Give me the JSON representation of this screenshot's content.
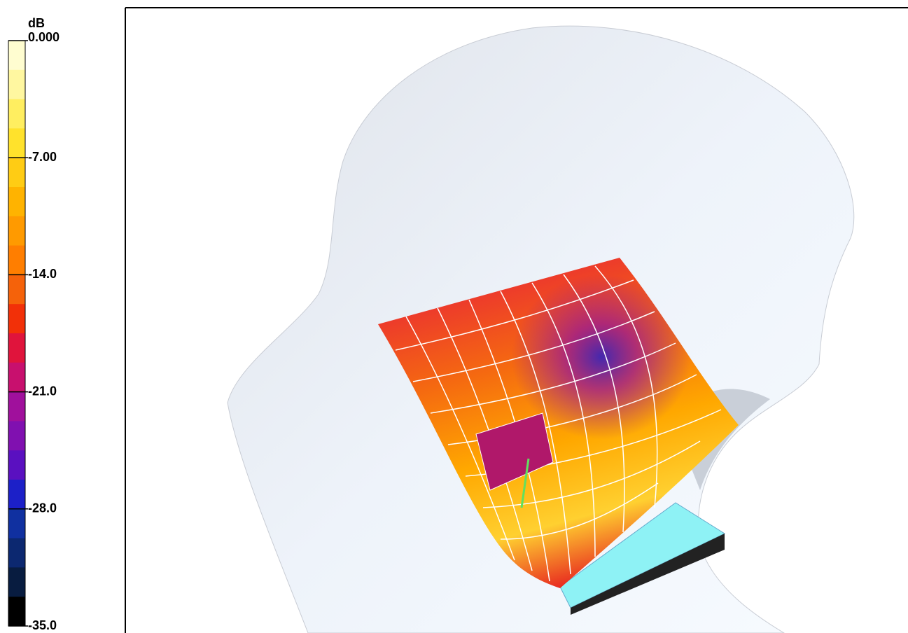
{
  "colorbar": {
    "unit": "dB",
    "labels": [
      "0.000",
      "-7.00",
      "-14.0",
      "-21.0",
      "-28.0",
      "-35.0"
    ],
    "colors": [
      "#fffdd0",
      "#fff7a0",
      "#ffee60",
      "#ffe22c",
      "#ffcc14",
      "#ffb300",
      "#ff9a00",
      "#ff7e00",
      "#f5620a",
      "#f23008",
      "#e0143c",
      "#c8106e",
      "#a0109c",
      "#8010b0",
      "#5a10c0",
      "#1c20c8",
      "#1030a0",
      "#0c2870",
      "#081c40",
      "#000000"
    ]
  }
}
